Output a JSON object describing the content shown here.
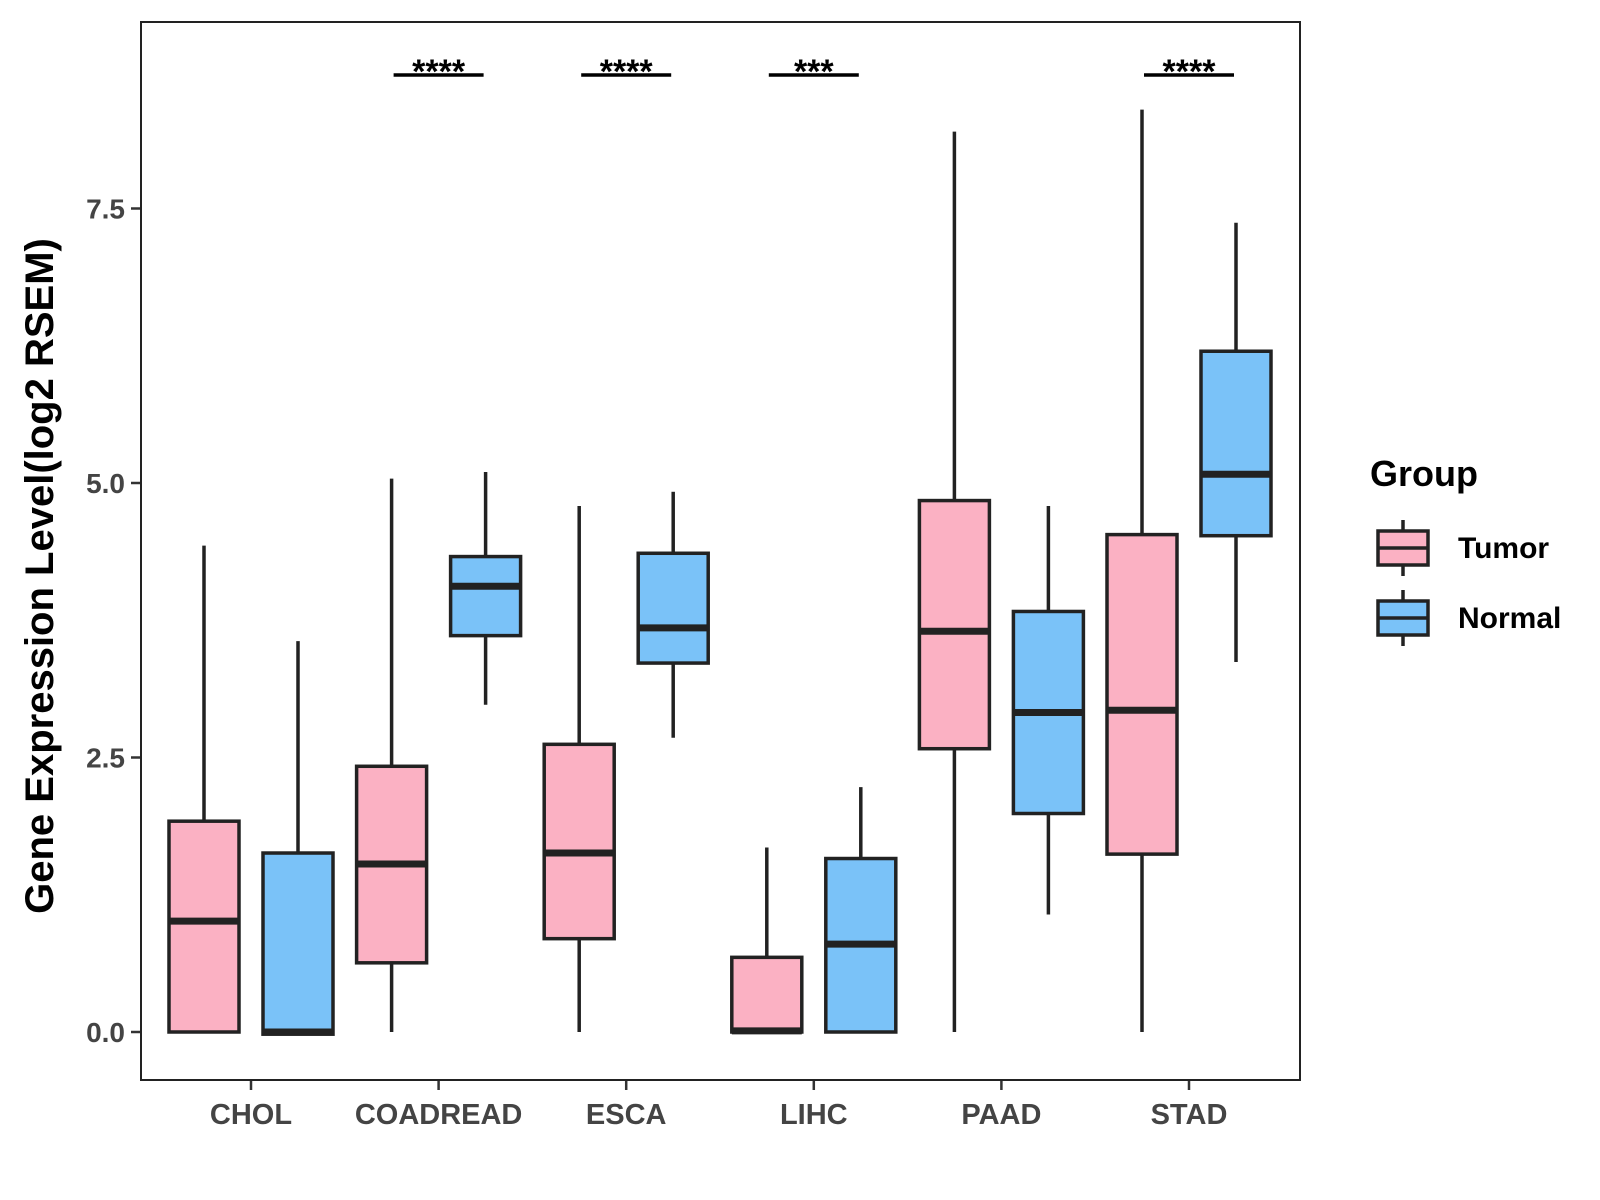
{
  "chart_data": {
    "type": "boxplot",
    "ylabel": "Gene Expression Level(log2 RSEM)",
    "xlabel": "",
    "ylim": [
      -0.43,
      9.2
    ],
    "yticks": [
      0.0,
      2.5,
      5.0,
      7.5
    ],
    "ytick_labels": [
      "0.0",
      "2.5",
      "5.0",
      "7.5"
    ],
    "categories": [
      "CHOL",
      "COADREAD",
      "ESCA",
      "LIHC",
      "PAAD",
      "STAD"
    ],
    "legend": {
      "title": "Group",
      "position": "right",
      "entries": [
        {
          "name": "Tumor",
          "color": "#FBB1C3"
        },
        {
          "name": "Normal",
          "color": "#7AC2F8"
        }
      ]
    },
    "series": [
      {
        "name": "Tumor",
        "color": "#FBB1C3",
        "boxes": [
          {
            "min": 0.0,
            "q1": 0.0,
            "median": 1.01,
            "q3": 1.92,
            "max": 4.43
          },
          {
            "min": 0.0,
            "q1": 0.63,
            "median": 1.53,
            "q3": 2.42,
            "max": 5.04
          },
          {
            "min": 0.0,
            "q1": 0.85,
            "median": 1.63,
            "q3": 2.62,
            "max": 4.79
          },
          {
            "min": 0.0,
            "q1": 0.0,
            "median": 0.01,
            "q3": 0.68,
            "max": 1.68
          },
          {
            "min": 0.0,
            "q1": 2.58,
            "median": 3.65,
            "q3": 4.84,
            "max": 8.2
          },
          {
            "min": 0.0,
            "q1": 1.62,
            "median": 2.93,
            "q3": 4.53,
            "max": 8.4
          }
        ]
      },
      {
        "name": "Normal",
        "color": "#7AC2F8",
        "boxes": [
          {
            "min": -0.02,
            "q1": -0.02,
            "median": 0.0,
            "q3": 1.63,
            "max": 3.56
          },
          {
            "min": 2.98,
            "q1": 3.61,
            "median": 4.06,
            "q3": 4.33,
            "max": 5.1
          },
          {
            "min": 2.68,
            "q1": 3.36,
            "median": 3.68,
            "q3": 4.36,
            "max": 4.92
          },
          {
            "min": 0.0,
            "q1": 0.0,
            "median": 0.8,
            "q3": 1.58,
            "max": 2.23
          },
          {
            "min": 1.07,
            "q1": 1.99,
            "median": 2.91,
            "q3": 3.83,
            "max": 4.79
          },
          {
            "min": 3.37,
            "q1": 4.52,
            "median": 5.08,
            "q3": 6.2,
            "max": 7.37
          }
        ]
      }
    ],
    "significance": [
      {
        "category": "CHOL",
        "label": ""
      },
      {
        "category": "COADREAD",
        "label": "****"
      },
      {
        "category": "ESCA",
        "label": "****"
      },
      {
        "category": "LIHC",
        "label": "***"
      },
      {
        "category": "PAAD",
        "label": ""
      },
      {
        "category": "STAD",
        "label": "****"
      }
    ]
  }
}
